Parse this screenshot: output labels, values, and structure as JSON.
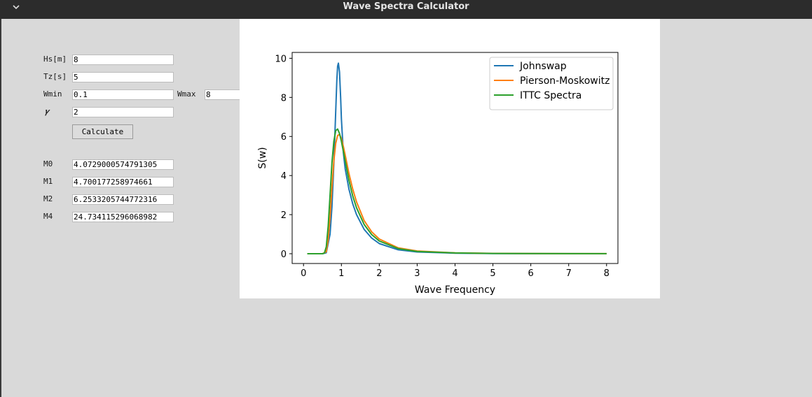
{
  "window": {
    "title": "Wave Spectra Calculator"
  },
  "inputs": {
    "hs_label": "Hs[m]",
    "hs_value": "8",
    "tz_label": "Tz[s]",
    "tz_value": "5",
    "wmin_label": "Wmin",
    "wmin_value": "0.1",
    "wmax_label": "Wmax",
    "wmax_value": "8",
    "gamma_label": "𝛾",
    "gamma_value": "2"
  },
  "calculate_label": "Calculate",
  "moments": {
    "m0_label": "M0",
    "m0_value": "4.0729000574791305",
    "m1_label": "M1",
    "m1_value": "4.700177258974661",
    "m2_label": "M2",
    "m2_value": "6.2533205744772316",
    "m4_label": "M4",
    "m4_value": "24.734115296068982"
  },
  "chart_data": {
    "type": "line",
    "xlabel": "Wave Frequency",
    "ylabel": "S(w)",
    "xlim": [
      -0.3,
      8.3
    ],
    "ylim": [
      -0.5,
      10.3
    ],
    "xticks": [
      0,
      1,
      2,
      3,
      4,
      5,
      6,
      7,
      8
    ],
    "yticks": [
      0,
      2,
      4,
      6,
      8,
      10
    ],
    "legend_position": "top-right",
    "grid": false,
    "series": [
      {
        "name": "Johnswap",
        "color": "#1f77b4",
        "x": [
          0.1,
          0.5,
          0.6,
          0.7,
          0.75,
          0.8,
          0.85,
          0.88,
          0.9,
          0.92,
          0.95,
          0.98,
          1.0,
          1.05,
          1.1,
          1.2,
          1.3,
          1.4,
          1.6,
          1.8,
          2.0,
          2.5,
          3.0,
          4.0,
          5.0,
          6.0,
          7.0,
          8.0
        ],
        "y": [
          0,
          0,
          0.05,
          1.0,
          2.4,
          4.6,
          7.3,
          8.9,
          9.6,
          9.75,
          9.3,
          8.0,
          6.9,
          5.2,
          4.35,
          3.3,
          2.55,
          2.0,
          1.25,
          0.8,
          0.52,
          0.2,
          0.09,
          0.03,
          0.012,
          0.006,
          0.003,
          0.002
        ]
      },
      {
        "name": "Pierson-Moskowitz",
        "color": "#ff7f0e",
        "x": [
          0.1,
          0.5,
          0.6,
          0.65,
          0.7,
          0.75,
          0.8,
          0.85,
          0.9,
          0.95,
          1.0,
          1.05,
          1.1,
          1.2,
          1.3,
          1.4,
          1.6,
          1.8,
          2.0,
          2.5,
          3.0,
          4.0,
          5.0,
          6.0,
          7.0,
          8.0
        ],
        "y": [
          0,
          0,
          0.1,
          0.7,
          1.9,
          3.4,
          4.75,
          5.65,
          6.05,
          6.1,
          5.9,
          5.5,
          5.05,
          4.1,
          3.3,
          2.65,
          1.7,
          1.12,
          0.75,
          0.3,
          0.14,
          0.045,
          0.018,
          0.009,
          0.005,
          0.003
        ]
      },
      {
        "name": "ITTC Spectra",
        "color": "#2ca02c",
        "x": [
          0.1,
          0.5,
          0.55,
          0.6,
          0.65,
          0.7,
          0.75,
          0.8,
          0.85,
          0.9,
          0.95,
          1.0,
          1.05,
          1.1,
          1.2,
          1.3,
          1.4,
          1.6,
          1.8,
          2.0,
          2.5,
          3.0,
          4.0,
          5.0,
          6.0,
          7.0,
          8.0
        ],
        "y": [
          0,
          0,
          0.03,
          0.35,
          1.4,
          3.0,
          4.65,
          5.75,
          6.3,
          6.38,
          6.15,
          5.75,
          5.25,
          4.75,
          3.75,
          2.95,
          2.35,
          1.5,
          0.98,
          0.65,
          0.26,
          0.12,
          0.04,
          0.016,
          0.008,
          0.004,
          0.003
        ]
      }
    ]
  }
}
